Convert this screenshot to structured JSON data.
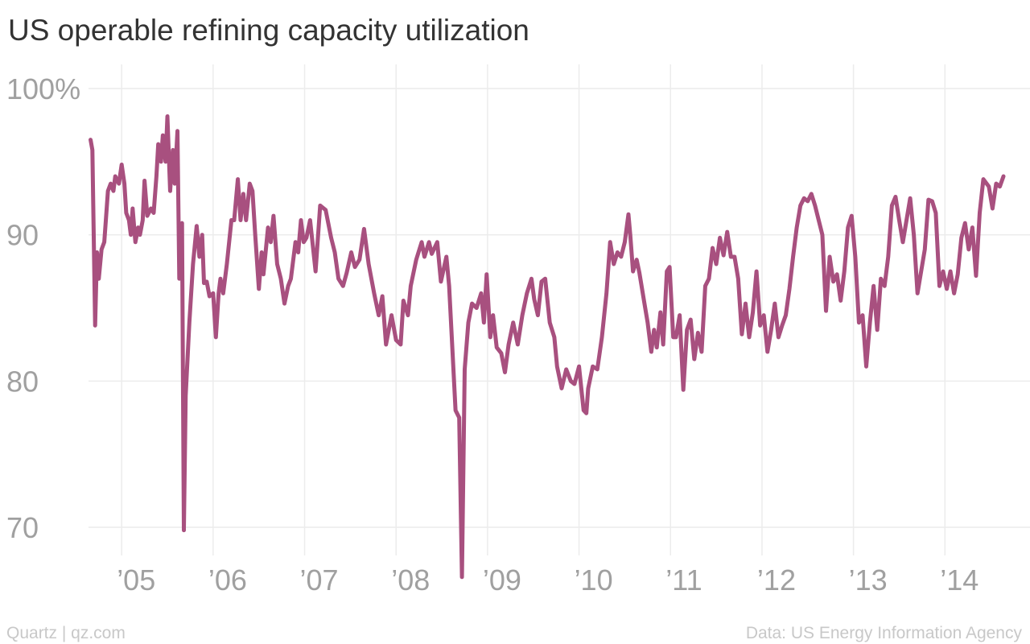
{
  "chart_data": {
    "type": "line",
    "title": "US operable refining capacity utilization",
    "source": "Data: US Energy Information Agency",
    "credit": "Quartz | qz.com",
    "xlim": [
      2003.67,
      2014.93
    ],
    "ylim": [
      66,
      102
    ],
    "yticks": [
      {
        "value": 100,
        "label": "100%"
      },
      90,
      80,
      70
    ],
    "xticks": [
      {
        "value": 2005,
        "label": "’05"
      },
      {
        "value": 2006,
        "label": "’06"
      },
      {
        "value": 2007,
        "label": "’07"
      },
      {
        "value": 2008,
        "label": "’08"
      },
      {
        "value": 2009,
        "label": "’09"
      },
      {
        "value": 2010,
        "label": "’10"
      },
      {
        "value": 2011,
        "label": "’11"
      },
      {
        "value": 2012,
        "label": "’12"
      },
      {
        "value": 2013,
        "label": "’13"
      },
      {
        "value": 2014,
        "label": "’14"
      }
    ],
    "grid": true,
    "series": [
      {
        "name": "Utilization",
        "color": "#a8507f",
        "x": [
          2004.66,
          2004.68,
          2004.71,
          2004.73,
          2004.75,
          2004.78,
          2004.81,
          2004.85,
          2004.88,
          2004.91,
          2004.93,
          2004.97,
          2005.0,
          2005.03,
          2005.05,
          2005.08,
          2005.1,
          2005.12,
          2005.15,
          2005.18,
          2005.2,
          2005.23,
          2005.25,
          2005.28,
          2005.32,
          2005.35,
          2005.38,
          2005.4,
          2005.43,
          2005.45,
          2005.48,
          2005.5,
          2005.53,
          2005.56,
          2005.58,
          2005.61,
          2005.63,
          2005.66,
          2005.68,
          2005.7,
          2005.74,
          2005.78,
          2005.82,
          2005.85,
          2005.88,
          2005.9,
          2005.93,
          2005.96,
          2006.0,
          2006.03,
          2006.06,
          2006.08,
          2006.11,
          2006.15,
          2006.2,
          2006.23,
          2006.27,
          2006.3,
          2006.33,
          2006.36,
          2006.4,
          2006.43,
          2006.46,
          2006.5,
          2006.53,
          2006.55,
          2006.6,
          2006.63,
          2006.66,
          2006.7,
          2006.74,
          2006.78,
          2006.82,
          2006.85,
          2006.9,
          2006.93,
          2006.96,
          2006.99,
          2007.02,
          2007.06,
          2007.12,
          2007.17,
          2007.23,
          2007.29,
          2007.33,
          2007.37,
          2007.42,
          2007.46,
          2007.51,
          2007.55,
          2007.6,
          2007.65,
          2007.7,
          2007.76,
          2007.81,
          2007.85,
          2007.89,
          2007.95,
          2008.0,
          2008.05,
          2008.08,
          2008.13,
          2008.16,
          2008.22,
          2008.28,
          2008.31,
          2008.36,
          2008.39,
          2008.45,
          2008.49,
          2008.55,
          2008.58,
          2008.65,
          2008.69,
          2008.72,
          2008.75,
          2008.79,
          2008.83,
          2008.88,
          2008.93,
          2008.96,
          2008.99,
          2009.03,
          2009.06,
          2009.1,
          2009.15,
          2009.19,
          2009.23,
          2009.28,
          2009.33,
          2009.38,
          2009.43,
          2009.48,
          2009.51,
          2009.55,
          2009.59,
          2009.63,
          2009.68,
          2009.73,
          2009.76,
          2009.81,
          2009.86,
          2009.91,
          2009.95,
          2010.0,
          2010.05,
          2010.08,
          2010.1,
          2010.15,
          2010.2,
          2010.25,
          2010.3,
          2010.34,
          2010.38,
          2010.42,
          2010.46,
          2010.5,
          2010.54,
          2010.56,
          2010.59,
          2010.63,
          2010.66,
          2010.71,
          2010.75,
          2010.79,
          2010.82,
          2010.85,
          2010.89,
          2010.92,
          2010.96,
          2010.99,
          2011.03,
          2011.06,
          2011.1,
          2011.14,
          2011.18,
          2011.22,
          2011.26,
          2011.3,
          2011.34,
          2011.38,
          2011.42,
          2011.46,
          2011.5,
          2011.54,
          2011.58,
          2011.62,
          2011.66,
          2011.7,
          2011.74,
          2011.78,
          2011.82,
          2011.86,
          2011.9,
          2011.94,
          2011.98,
          2012.02,
          2012.06,
          2012.1,
          2012.14,
          2012.18,
          2012.22,
          2012.26,
          2012.3,
          2012.34,
          2012.38,
          2012.42,
          2012.46,
          2012.5,
          2012.54,
          2012.58,
          2012.66,
          2012.7,
          2012.74,
          2012.78,
          2012.82,
          2012.86,
          2012.9,
          2012.94,
          2012.98,
          2013.02,
          2013.06,
          2013.1,
          2013.14,
          2013.18,
          2013.22,
          2013.26,
          2013.3,
          2013.34,
          2013.38,
          2013.42,
          2013.46,
          2013.5,
          2013.54,
          2013.58,
          2013.62,
          2013.66,
          2013.7,
          2013.74,
          2013.78,
          2013.82,
          2013.86,
          2013.9,
          2013.94,
          2013.98,
          2014.02,
          2014.06,
          2014.1,
          2014.14,
          2014.18,
          2014.22,
          2014.26,
          2014.3,
          2014.34,
          2014.38,
          2014.42,
          2014.48,
          2014.52,
          2014.56,
          2014.6,
          2014.64
        ],
        "values": [
          96.5,
          95.8,
          83.8,
          88.8,
          87,
          89,
          89.5,
          93,
          93.5,
          93,
          94,
          93.5,
          94.8,
          93.5,
          91.5,
          91,
          90,
          91.8,
          89.5,
          90.5,
          90,
          91,
          93.7,
          91.3,
          91.8,
          91.5,
          94,
          96.2,
          95,
          96.8,
          95,
          98.1,
          93,
          95.8,
          93.5,
          97.1,
          87,
          90.8,
          69.8,
          79,
          84,
          88,
          90.6,
          88.5,
          90,
          86.7,
          86.8,
          85.8,
          86,
          83,
          86,
          87,
          86,
          88,
          91,
          91,
          93.8,
          91,
          92.8,
          91,
          93.5,
          93,
          90,
          86.3,
          88.8,
          87.3,
          90.5,
          89.5,
          91.3,
          88,
          87,
          85.3,
          86.5,
          87,
          89.5,
          88.8,
          91,
          89.5,
          89.8,
          91,
          87.5,
          92,
          91.7,
          89.8,
          88.8,
          87,
          86.5,
          87.4,
          88.8,
          87.8,
          88.3,
          90.4,
          88,
          86,
          84.5,
          85.8,
          82.5,
          84.5,
          82.8,
          82.5,
          85.5,
          84.5,
          86.5,
          88.3,
          89.5,
          88.5,
          89.5,
          88.7,
          89.5,
          86.8,
          88.5,
          86.5,
          78,
          77.5,
          66.6,
          80.8,
          84,
          85.3,
          85,
          86,
          84,
          87.3,
          83,
          84.5,
          82.3,
          81.9,
          80.6,
          82.5,
          84,
          82.5,
          84.5,
          86,
          87,
          85.6,
          84.5,
          86.8,
          87,
          84,
          83,
          81,
          79.5,
          80.8,
          80,
          79.8,
          81,
          78,
          77.8,
          79.5,
          81,
          80.8,
          83,
          86,
          89.5,
          88,
          88.8,
          88.5,
          89.5,
          91.4,
          90,
          87.5,
          88.3,
          87.4,
          85.5,
          84,
          82,
          83.5,
          82.3,
          84.7,
          82.5,
          87.5,
          87.8,
          83,
          83,
          84.5,
          79.4,
          83.5,
          84.2,
          81.5,
          83.3,
          82,
          86.5,
          87,
          89.1,
          88,
          89.8,
          88.6,
          90.2,
          88.5,
          88.5,
          87,
          83.2,
          85.3,
          83,
          84.7,
          87.5,
          83.8,
          84.5,
          82,
          83.5,
          85.3,
          83,
          83.8,
          84.5,
          86.3,
          88.5,
          90.5,
          92,
          92.5,
          92.3,
          92.8,
          92,
          90,
          84.8,
          88.5,
          86.8,
          87.3,
          85.5,
          87.5,
          90.5,
          91.3,
          88.5,
          84,
          84.5,
          81,
          84,
          86.5,
          83.5,
          87,
          86.5,
          88.5,
          92,
          92.6,
          91,
          89.5,
          91,
          92.5,
          90,
          86,
          87.5,
          89,
          92.4,
          92.3,
          91.5,
          86.5,
          87.5,
          86.3,
          87.5,
          86,
          87.3,
          89.8,
          90.8,
          89,
          90.5,
          87.2,
          91.5,
          93.8,
          93.3,
          91.8,
          93.5,
          93.3,
          94
        ]
      }
    ]
  }
}
